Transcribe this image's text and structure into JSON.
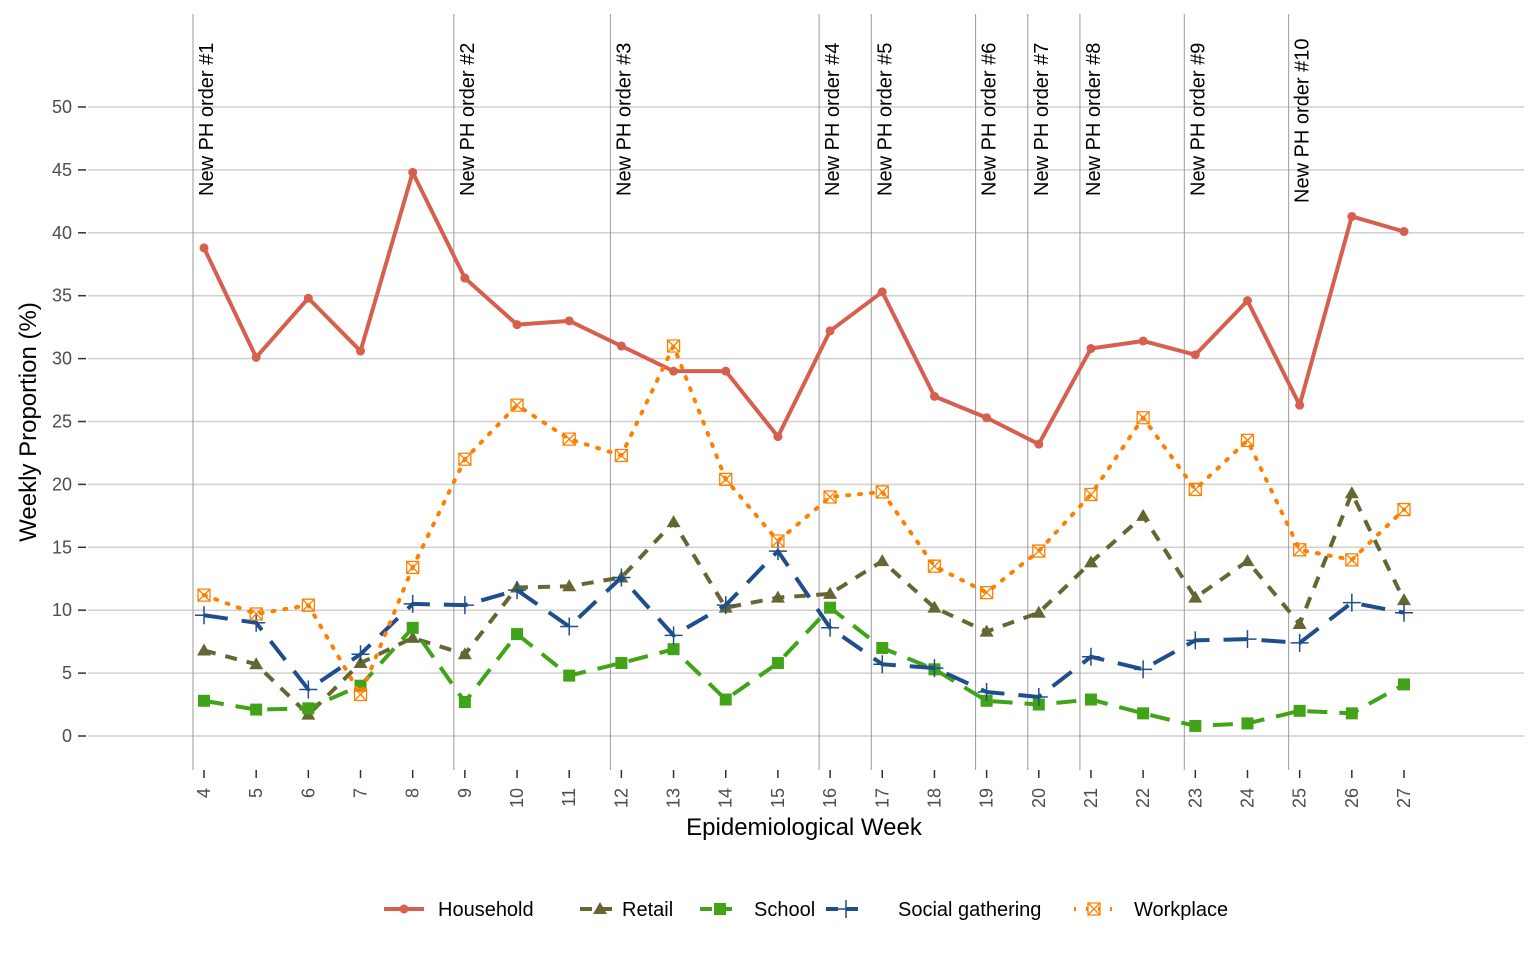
{
  "chart_data": {
    "type": "line",
    "title": "",
    "xlabel": "Epidemiological Week",
    "ylabel": "Weekly Proportion (%)",
    "x": [
      4,
      5,
      6,
      7,
      8,
      9,
      10,
      11,
      12,
      13,
      14,
      15,
      16,
      17,
      18,
      19,
      20,
      21,
      22,
      23,
      24,
      25,
      26,
      27
    ],
    "ylim": [
      0,
      50
    ],
    "yticks": [
      0,
      5,
      10,
      15,
      20,
      25,
      30,
      35,
      40,
      45,
      50
    ],
    "grid": "horizontal",
    "legend_position": "bottom",
    "series": [
      {
        "name": "Household",
        "color": "#d6604d",
        "marker": "circle",
        "line": "solid",
        "values": [
          38.8,
          30.1,
          34.8,
          30.6,
          44.8,
          36.4,
          32.7,
          33.0,
          31.0,
          29.0,
          29.0,
          23.8,
          32.2,
          35.3,
          27.0,
          25.3,
          23.2,
          30.8,
          31.4,
          30.3,
          34.6,
          26.3,
          41.3,
          40.1
        ]
      },
      {
        "name": "Retail",
        "color": "#666633",
        "marker": "triangle",
        "line": "dashed",
        "values": [
          6.8,
          5.7,
          1.7,
          5.8,
          7.8,
          6.5,
          11.8,
          11.9,
          12.6,
          17.0,
          10.2,
          11.0,
          11.3,
          13.9,
          10.2,
          8.3,
          9.8,
          13.8,
          17.5,
          11.0,
          13.9,
          8.9,
          19.3,
          10.8
        ]
      },
      {
        "name": "School",
        "color": "#41a317",
        "marker": "square",
        "line": "longdash",
        "values": [
          2.8,
          2.1,
          2.2,
          4.0,
          8.6,
          2.7,
          8.1,
          4.8,
          5.8,
          6.9,
          2.9,
          5.8,
          10.2,
          7.0,
          5.3,
          2.8,
          2.5,
          2.9,
          1.8,
          0.8,
          1.0,
          2.0,
          1.8,
          4.1
        ]
      },
      {
        "name": "Social gathering",
        "color": "#1f4e8c",
        "marker": "plus",
        "line": "longdash2",
        "values": [
          9.6,
          9.0,
          3.7,
          6.5,
          10.5,
          10.4,
          11.6,
          8.7,
          12.6,
          8.0,
          10.4,
          14.7,
          8.6,
          5.7,
          5.4,
          3.5,
          3.1,
          6.3,
          5.3,
          7.6,
          7.7,
          7.4,
          10.6,
          9.8
        ]
      },
      {
        "name": "Workplace",
        "color": "#ff8000",
        "marker": "boxed-x",
        "line": "dotted",
        "values": [
          11.2,
          9.7,
          10.4,
          3.3,
          13.4,
          22.0,
          26.3,
          23.6,
          22.3,
          31.0,
          20.4,
          15.5,
          19.0,
          19.4,
          13.5,
          11.4,
          14.7,
          19.2,
          25.3,
          19.6,
          23.5,
          14.8,
          14.0,
          18.0
        ]
      }
    ],
    "annotations": [
      {
        "week": 4,
        "label": "New PH order #1"
      },
      {
        "week": 9,
        "label": "New PH order #2"
      },
      {
        "week": 12,
        "label": "New PH order #3"
      },
      {
        "week": 16,
        "label": "New PH order #4"
      },
      {
        "week": 17,
        "label": "New PH order #5"
      },
      {
        "week": 19,
        "label": "New PH order #6"
      },
      {
        "week": 20,
        "label": "New PH order #7"
      },
      {
        "week": 21,
        "label": "New PH order #8"
      },
      {
        "week": 23,
        "label": "New PH order #9"
      },
      {
        "week": 25,
        "label": "New PH order #10"
      }
    ]
  }
}
